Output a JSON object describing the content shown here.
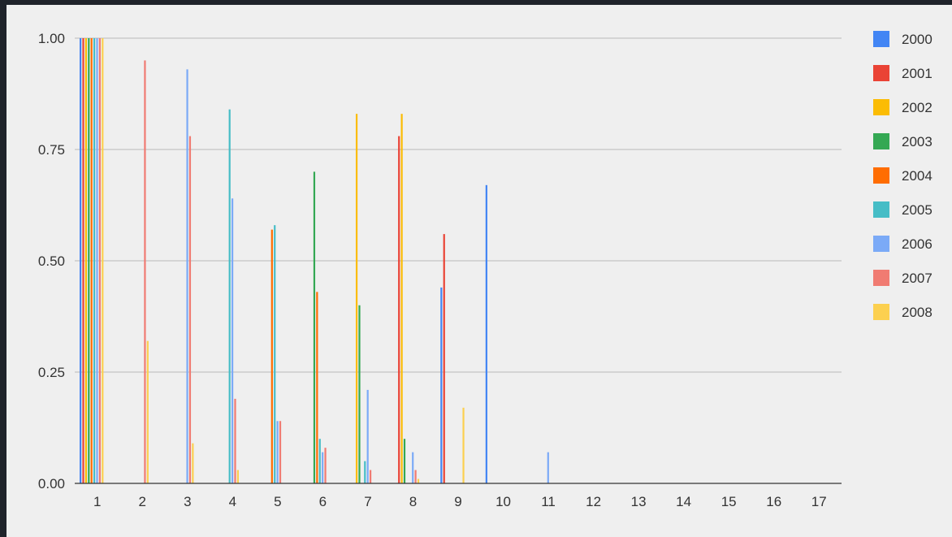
{
  "chart_data": {
    "type": "bar",
    "title": "",
    "xlabel": "",
    "ylabel": "",
    "ylim": [
      0,
      1
    ],
    "yticks": [
      "0.00",
      "0.25",
      "0.50",
      "0.75",
      "1.00"
    ],
    "categories": [
      "1",
      "2",
      "3",
      "4",
      "5",
      "6",
      "7",
      "8",
      "9",
      "10",
      "11",
      "12",
      "13",
      "14",
      "15",
      "16",
      "17"
    ],
    "grid": true,
    "legend_position": "right",
    "series": [
      {
        "name": "2000",
        "color": "#4285f4",
        "values": [
          1,
          0,
          0,
          0,
          0,
          0,
          0,
          0,
          0.44,
          0.67,
          0,
          0,
          0,
          0,
          0,
          0,
          0
        ]
      },
      {
        "name": "2001",
        "color": "#ea4335",
        "values": [
          1,
          0,
          0,
          0,
          0,
          0,
          0,
          0.78,
          0.56,
          0,
          0,
          0,
          0,
          0,
          0,
          0,
          0
        ]
      },
      {
        "name": "2002",
        "color": "#fbbc04",
        "values": [
          1,
          0,
          0,
          0,
          0,
          0,
          0.83,
          0.83,
          0,
          0,
          0,
          0,
          0,
          0,
          0,
          0,
          0
        ]
      },
      {
        "name": "2003",
        "color": "#34a853",
        "values": [
          1,
          0,
          0,
          0,
          0,
          0.7,
          0.4,
          0.1,
          0,
          0,
          0,
          0,
          0,
          0,
          0,
          0,
          0
        ]
      },
      {
        "name": "2004",
        "color": "#ff6d01",
        "values": [
          1,
          0,
          0,
          0,
          0.57,
          0.43,
          0,
          0,
          0,
          0,
          0,
          0,
          0,
          0,
          0,
          0,
          0
        ]
      },
      {
        "name": "2005",
        "color": "#46bdc6",
        "values": [
          1,
          0,
          0,
          0.84,
          0.58,
          0.1,
          0.05,
          0,
          0,
          0,
          0,
          0,
          0,
          0,
          0,
          0,
          0
        ]
      },
      {
        "name": "2006",
        "color": "#7baaf7",
        "values": [
          1,
          0,
          0.93,
          0.64,
          0.14,
          0.07,
          0.21,
          0.07,
          0,
          0,
          0.07,
          0,
          0,
          0,
          0,
          0,
          0
        ]
      },
      {
        "name": "2007",
        "color": "#f07b72",
        "values": [
          1,
          0.95,
          0.78,
          0.19,
          0.14,
          0.08,
          0.03,
          0.03,
          0,
          0,
          0,
          0,
          0,
          0,
          0,
          0,
          0
        ]
      },
      {
        "name": "2008",
        "color": "#fcd04f",
        "values": [
          1,
          0.32,
          0.09,
          0.03,
          0,
          0,
          0,
          0.01,
          0.17,
          0,
          0,
          0,
          0,
          0,
          0,
          0,
          0
        ]
      }
    ]
  }
}
